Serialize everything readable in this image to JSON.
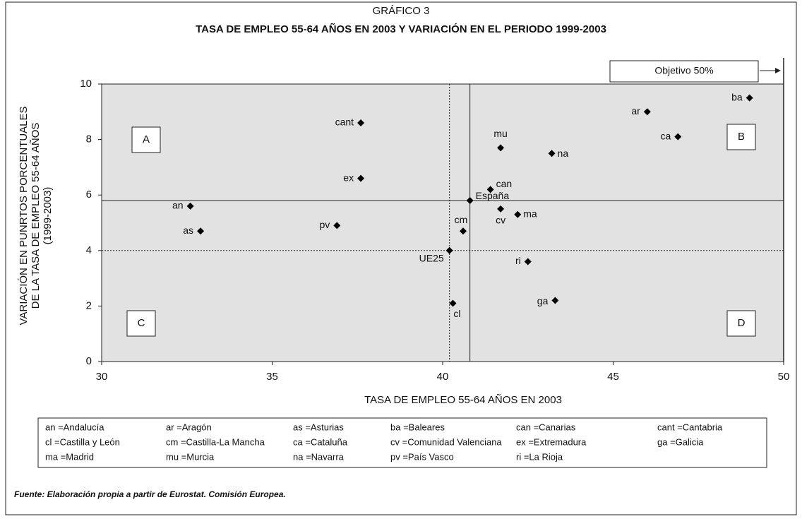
{
  "chart_data": {
    "type": "scatter",
    "title": "GRÁFICO 3",
    "subtitle": "TASA DE EMPLEO 55-64 AÑOS EN 2003 Y VARIACIÓN EN EL PERIODO 1999-2003",
    "xlabel": "TASA DE EMPLEO  55-64 AÑOS EN 2003",
    "ylabel": [
      "VARIACIÓN EN PUNRTOS PORCENTUALES",
      "DE LA TASA DE  EMPLEO 55-64 AÑOS",
      "(1999-2003)"
    ],
    "xlim": [
      30,
      50
    ],
    "xticks": [
      30,
      35,
      40,
      45,
      50
    ],
    "ylim": [
      0,
      10
    ],
    "yticks": [
      0,
      2,
      4,
      6,
      8,
      10
    ],
    "color": "#000000",
    "points": [
      {
        "label": "ba",
        "x": 49.0,
        "y": 9.5
      },
      {
        "label": "ar",
        "x": 46.0,
        "y": 9.0
      },
      {
        "label": "ca",
        "x": 46.9,
        "y": 8.1
      },
      {
        "label": "cant",
        "x": 37.6,
        "y": 8.6
      },
      {
        "label": "mu",
        "x": 41.7,
        "y": 7.7
      },
      {
        "label": "na",
        "x": 43.2,
        "y": 7.5
      },
      {
        "label": "ex",
        "x": 37.6,
        "y": 6.6
      },
      {
        "label": "can",
        "x": 41.4,
        "y": 6.2
      },
      {
        "label": "España",
        "x": 40.8,
        "y": 5.8
      },
      {
        "label": "cv",
        "x": 41.7,
        "y": 5.5
      },
      {
        "label": "ma",
        "x": 42.2,
        "y": 5.3
      },
      {
        "label": "an",
        "x": 32.6,
        "y": 5.6
      },
      {
        "label": "as",
        "x": 32.9,
        "y": 4.7
      },
      {
        "label": "pv",
        "x": 36.9,
        "y": 4.9
      },
      {
        "label": "cm",
        "x": 40.6,
        "y": 4.7
      },
      {
        "label": "UE25",
        "x": 40.2,
        "y": 4.0
      },
      {
        "label": "ri",
        "x": 42.5,
        "y": 3.6
      },
      {
        "label": "ga",
        "x": 43.3,
        "y": 2.2
      },
      {
        "label": "cl",
        "x": 40.3,
        "y": 2.1
      }
    ],
    "lines": [
      {
        "x": 40.8,
        "y": 5.8,
        "style": "solid"
      },
      {
        "x": 40.2,
        "y": 4.0,
        "style": "dotted"
      }
    ],
    "quadrants": [
      "A",
      "B",
      "C",
      "D"
    ],
    "target_label": "Objetivo 50%",
    "legend_items": [
      "an =Andalucía",
      "ar =Aragón",
      "as =Asturias",
      "ba =Baleares",
      "can =Canarias",
      "cant =Cantabria",
      "cl =Castilla y León",
      "cm =Castilla-La Mancha",
      "ca =Cataluña",
      "cv =Comunidad Valenciana",
      "ex =Extremadura",
      "ga =Galicia",
      "ma =Madrid",
      "mu =Murcia",
      "na =Navarra",
      "pv =País Vasco",
      "ri =La Rioja"
    ],
    "source": "Fuente: Elaboración propia a partir de Eurostat. Comisión Europea."
  }
}
